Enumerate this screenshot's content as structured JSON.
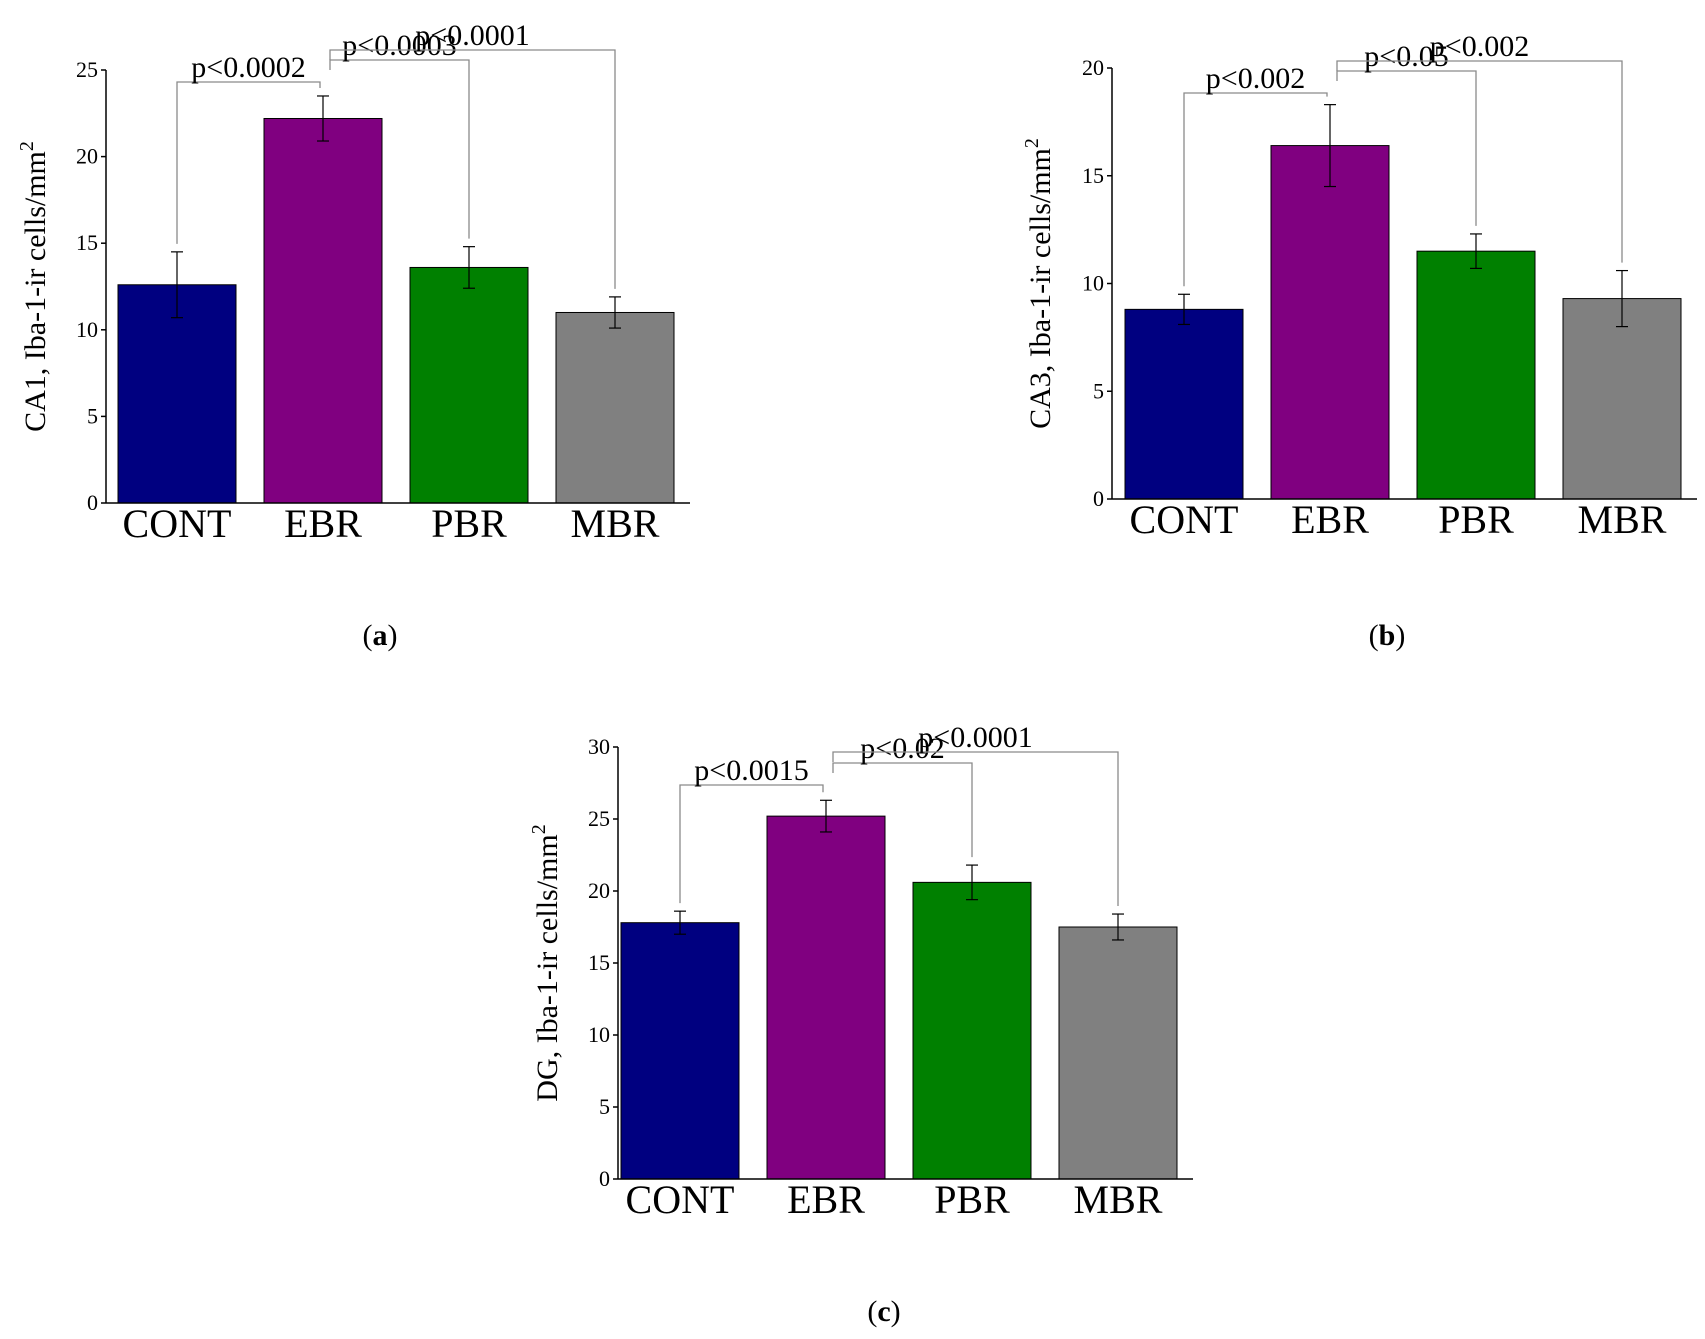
{
  "chart_data": [
    {
      "id": "a",
      "type": "bar",
      "panel_label": "a",
      "ylabel": "CA1, Iba-1-ir cells/mm",
      "ylabel_sup": "2",
      "ylim": [
        0,
        25
      ],
      "yticks": [
        0,
        5,
        10,
        15,
        20,
        25
      ],
      "categories": [
        "CONT",
        "EBR",
        "PBR",
        "MBR"
      ],
      "colors": [
        "#000080",
        "#800080",
        "#008000",
        "#808080"
      ],
      "values": [
        12.6,
        22.2,
        13.6,
        11.0
      ],
      "errors": [
        1.9,
        1.3,
        1.2,
        0.9
      ],
      "comparisons": [
        {
          "from": "CONT",
          "to": "EBR",
          "label": "p<0.0002"
        },
        {
          "from": "EBR",
          "to": "PBR",
          "label": "p<0.0003"
        },
        {
          "from": "EBR",
          "to": "MBR",
          "label": "p<0.0001"
        }
      ]
    },
    {
      "id": "b",
      "type": "bar",
      "panel_label": "b",
      "ylabel": "CA3, Iba-1-ir cells/mm",
      "ylabel_sup": "2",
      "ylim": [
        0,
        20
      ],
      "yticks": [
        0,
        5,
        10,
        15,
        20
      ],
      "categories": [
        "CONT",
        "EBR",
        "PBR",
        "MBR"
      ],
      "colors": [
        "#000080",
        "#800080",
        "#008000",
        "#808080"
      ],
      "values": [
        8.8,
        16.4,
        11.5,
        9.3
      ],
      "errors": [
        0.7,
        1.9,
        0.8,
        1.3
      ],
      "comparisons": [
        {
          "from": "CONT",
          "to": "EBR",
          "label": "p<0.002"
        },
        {
          "from": "EBR",
          "to": "PBR",
          "label": "p<0.05"
        },
        {
          "from": "EBR",
          "to": "MBR",
          "label": "p<0.002"
        }
      ]
    },
    {
      "id": "c",
      "type": "bar",
      "panel_label": "c",
      "ylabel": "DG, Iba-1-ir cells/mm",
      "ylabel_sup": "2",
      "ylim": [
        0,
        30
      ],
      "yticks": [
        0,
        5,
        10,
        15,
        20,
        25,
        30
      ],
      "categories": [
        "CONT",
        "EBR",
        "PBR",
        "MBR"
      ],
      "colors": [
        "#000080",
        "#800080",
        "#008000",
        "#808080"
      ],
      "values": [
        17.8,
        25.2,
        20.6,
        17.5
      ],
      "errors": [
        0.8,
        1.1,
        1.2,
        0.9
      ],
      "comparisons": [
        {
          "from": "CONT",
          "to": "EBR",
          "label": "p<0.0015"
        },
        {
          "from": "EBR",
          "to": "PBR",
          "label": "p<0.02"
        },
        {
          "from": "EBR",
          "to": "MBR",
          "label": "p<0.0001"
        }
      ]
    }
  ]
}
